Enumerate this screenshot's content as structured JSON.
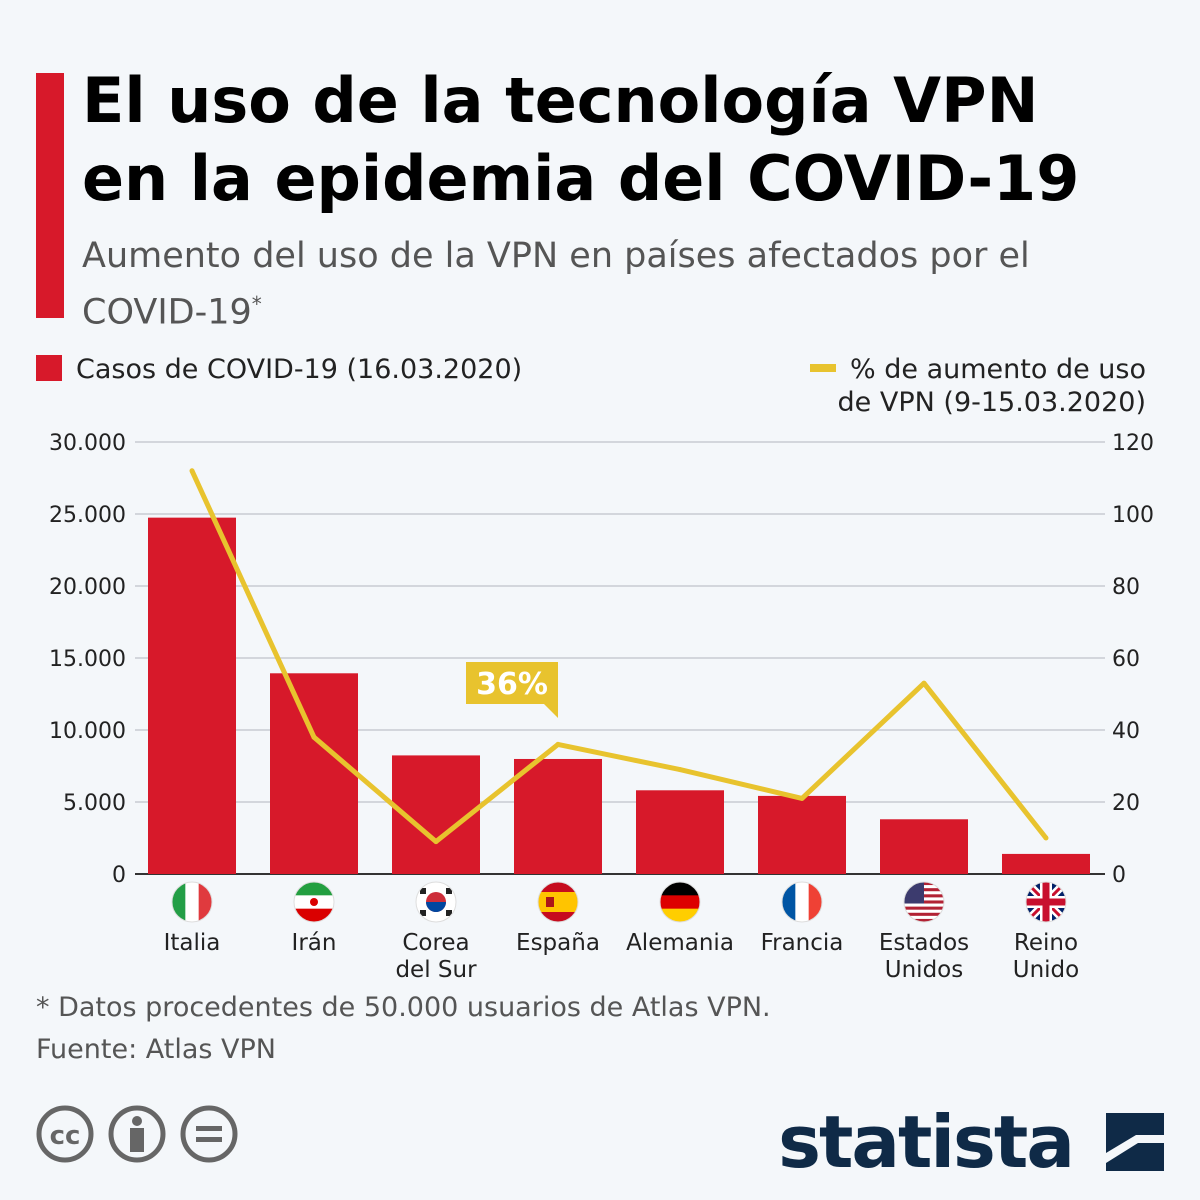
{
  "title": "El uso de la tecnología VPN\nen la epidemia del COVID-19",
  "subtitle": "Aumento del uso de la VPN en países afectados por el COVID-19",
  "subtitle_mark": "*",
  "colors": {
    "bars": "#d7192a",
    "line": "#e8c32e",
    "accent": "#d7192a",
    "brand": "#0f2a47"
  },
  "chart_data": {
    "type": "bar",
    "categories": [
      "Italia",
      "Irán",
      "Corea del Sur",
      "España",
      "Alemania",
      "Francia",
      "Estados Unidos",
      "Reino Unido"
    ],
    "category_lines": [
      [
        "Italia"
      ],
      [
        "Irán"
      ],
      [
        "Corea",
        "del Sur"
      ],
      [
        "España"
      ],
      [
        "Alemania"
      ],
      [
        "Francia"
      ],
      [
        "Estados",
        "Unidos"
      ],
      [
        "Reino",
        "Unido"
      ]
    ],
    "flags": [
      "italy-flag",
      "iran-flag",
      "south-korea-flag",
      "spain-flag",
      "germany-flag",
      "france-flag",
      "usa-flag",
      "uk-flag"
    ],
    "series": [
      {
        "name": "Casos de COVID-19 (16.03.2020)",
        "type": "bar",
        "axis": "left",
        "values": [
          24747,
          13938,
          8236,
          7988,
          5813,
          5423,
          3800,
          1395
        ]
      },
      {
        "name": "% de aumento de uso de VPN (9-15.03.2020)",
        "type": "line",
        "axis": "right",
        "values": [
          112,
          38,
          9,
          36,
          29,
          21,
          53,
          10
        ]
      }
    ],
    "left_axis": {
      "range": [
        0,
        30000
      ],
      "ticks": [
        "0",
        "5.000",
        "10.000",
        "15.000",
        "20.000",
        "25.000",
        "30.000"
      ]
    },
    "right_axis": {
      "range": [
        0,
        120
      ],
      "ticks": [
        "0",
        "20",
        "40",
        "60",
        "80",
        "100",
        "120"
      ]
    },
    "annotation": {
      "category": "España",
      "text": "36%"
    },
    "grid": true,
    "legend_placement": "top"
  },
  "legend": {
    "bar_label": "Casos de COVID-19 (16.03.2020)",
    "line_label_1": "% de aumento de uso",
    "line_label_2": "de VPN (9-15.03.2020)"
  },
  "footnote": "* Datos procedentes de 50.000 usuarios de Atlas VPN.",
  "source": "Fuente: Atlas VPN",
  "license_icons": [
    "cc-icon",
    "attribution-icon",
    "no-derivatives-icon"
  ],
  "logo": "statista"
}
